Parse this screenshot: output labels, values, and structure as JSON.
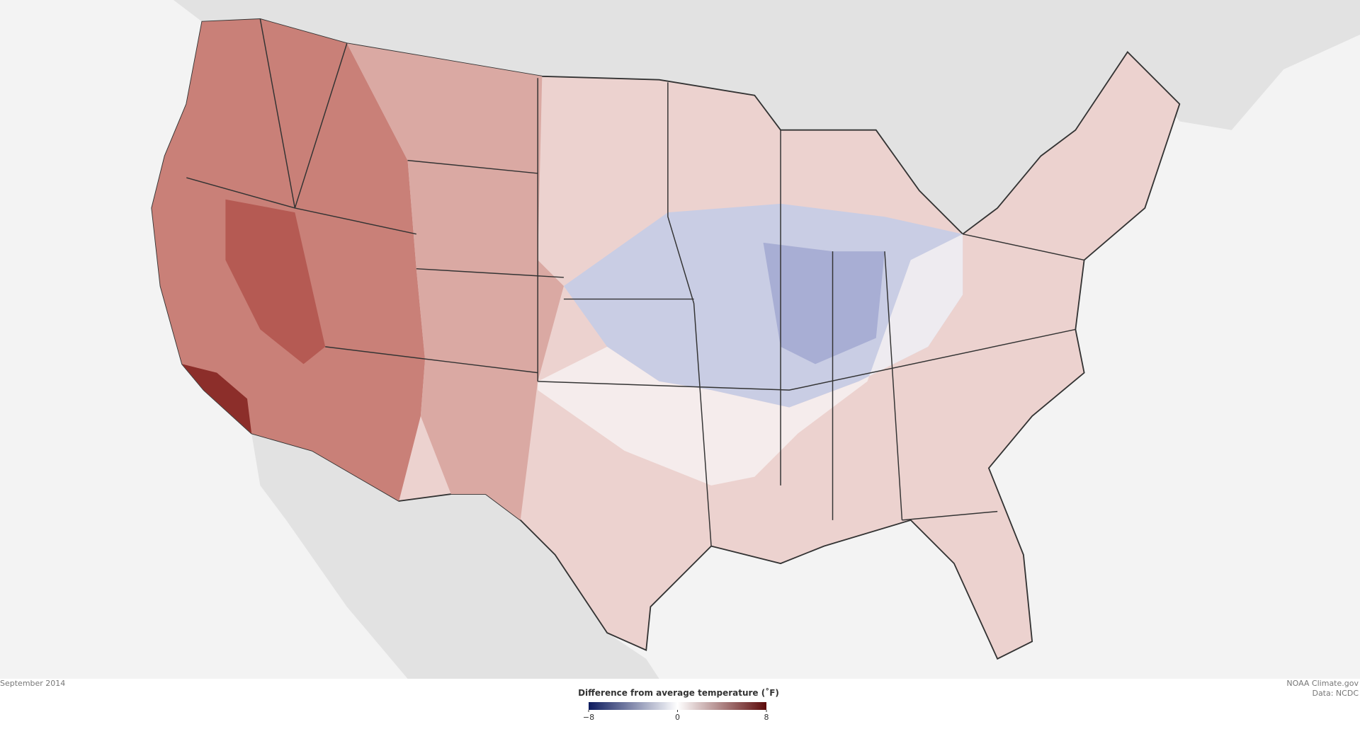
{
  "map": {
    "caption": "September 2014",
    "credit": [
      "NOAA Climate.gov",
      "Data: NCDC"
    ]
  },
  "legend": {
    "title": "Difference from average temperature (˚F)",
    "range": [
      -8,
      8
    ],
    "ticks": [
      {
        "value": -8,
        "label": "−8"
      },
      0,
      8
    ],
    "colors": [
      "#0d1b5e",
      "#ffffff",
      "#5c0a0a"
    ]
  }
}
